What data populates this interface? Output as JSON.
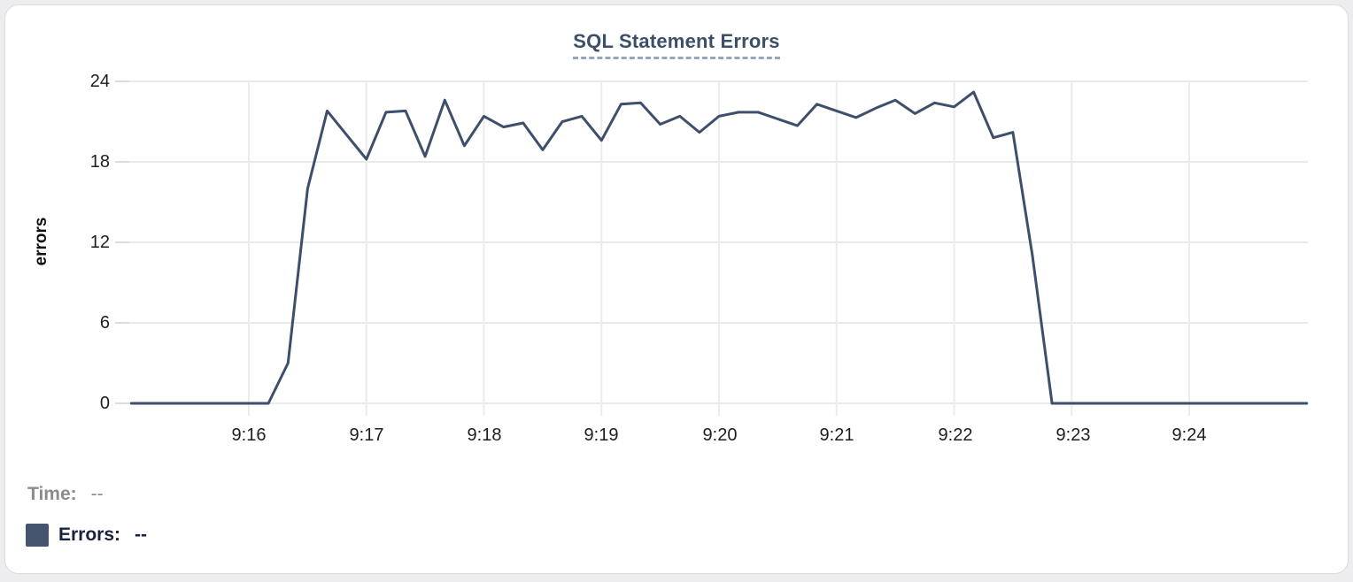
{
  "card": {
    "background": "#ffffff",
    "border_color": "#dcdce0"
  },
  "chart": {
    "title": "SQL Statement Errors",
    "title_color": "#3c4f68",
    "title_underline_color": "#98a6bc",
    "y_axis_label": "errors",
    "y_ticks": [
      "24",
      "18",
      "12",
      "6",
      "0"
    ],
    "x_ticks": [
      "9:16",
      "9:17",
      "9:18",
      "9:19",
      "9:20",
      "9:21",
      "9:22",
      "9:23",
      "9:24"
    ],
    "gridline_color": "#e9e9e9",
    "tooltip_readout": {
      "time_label": "Time:",
      "time_value": "--",
      "series_label": "Errors:",
      "series_value": "--",
      "swatch_color": "#46556f"
    }
  },
  "chart_data": {
    "type": "line",
    "title": "SQL Statement Errors",
    "xlabel": "",
    "ylabel": "errors",
    "ylim": [
      0,
      24
    ],
    "y_tick_values": [
      0,
      6,
      12,
      18,
      24
    ],
    "x_range": [
      "9:15:00",
      "9:25:00"
    ],
    "x_tick_labels": [
      "9:16",
      "9:17",
      "9:18",
      "9:19",
      "9:20",
      "9:21",
      "9:22",
      "9:23",
      "9:24"
    ],
    "grid": true,
    "legend_position": "none",
    "line_color": "#3e4e6b",
    "series": [
      {
        "name": "Errors",
        "x": [
          "9:15:00",
          "9:15:10",
          "9:15:20",
          "9:15:30",
          "9:15:40",
          "9:15:50",
          "9:16:00",
          "9:16:10",
          "9:16:20",
          "9:16:30",
          "9:16:40",
          "9:16:50",
          "9:17:00",
          "9:17:10",
          "9:17:20",
          "9:17:30",
          "9:17:40",
          "9:17:50",
          "9:18:00",
          "9:18:10",
          "9:18:20",
          "9:18:30",
          "9:18:40",
          "9:18:50",
          "9:19:00",
          "9:19:10",
          "9:19:20",
          "9:19:30",
          "9:19:40",
          "9:19:50",
          "9:20:00",
          "9:20:10",
          "9:20:20",
          "9:20:30",
          "9:20:40",
          "9:20:50",
          "9:21:00",
          "9:21:10",
          "9:21:20",
          "9:21:30",
          "9:21:40",
          "9:21:50",
          "9:22:00",
          "9:22:10",
          "9:22:20",
          "9:22:30",
          "9:22:40",
          "9:22:50",
          "9:23:00",
          "9:23:10",
          "9:23:20",
          "9:23:30",
          "9:23:40",
          "9:23:50",
          "9:24:00",
          "9:24:10",
          "9:24:20",
          "9:24:30",
          "9:24:40",
          "9:24:50",
          "9:25:00"
        ],
        "values": [
          0,
          0,
          0,
          0,
          0,
          0,
          0,
          0,
          3,
          16,
          21.8,
          20,
          18.2,
          21.7,
          21.8,
          18.4,
          22.6,
          19.2,
          21.4,
          20.6,
          20.9,
          18.9,
          21,
          21.4,
          19.6,
          22.3,
          22.4,
          20.8,
          21.4,
          20.2,
          21.4,
          21.7,
          21.7,
          21.2,
          20.7,
          22.3,
          21.8,
          21.3,
          22,
          22.6,
          21.6,
          22.4,
          22.1,
          23.2,
          19.8,
          20.2,
          11,
          0,
          0,
          0,
          0,
          0,
          0,
          0,
          0,
          0,
          0,
          0,
          0,
          0,
          0
        ]
      }
    ]
  }
}
